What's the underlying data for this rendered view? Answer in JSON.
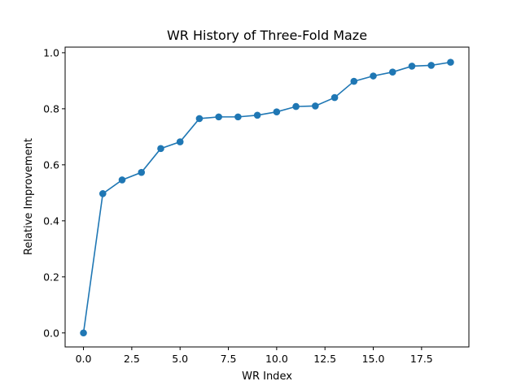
{
  "chart_data": {
    "type": "line",
    "title": "WR History of Three-Fold Maze",
    "xlabel": "WR Index",
    "ylabel": "Relative Improvement",
    "xlim": [
      -0.95,
      19.95
    ],
    "ylim": [
      -0.05,
      1.02
    ],
    "xticks": [
      0.0,
      2.5,
      5.0,
      7.5,
      10.0,
      12.5,
      15.0,
      17.5
    ],
    "xtick_labels": [
      "0.0",
      "2.5",
      "5.0",
      "7.5",
      "10.0",
      "12.5",
      "15.0",
      "17.5"
    ],
    "yticks": [
      0.0,
      0.2,
      0.4,
      0.6,
      0.8,
      1.0
    ],
    "ytick_labels": [
      "0.0",
      "0.2",
      "0.4",
      "0.6",
      "0.8",
      "1.0"
    ],
    "grid": false,
    "color": "#1f77b4",
    "marker": "circle",
    "x": [
      0,
      1,
      2,
      3,
      4,
      5,
      6,
      7,
      8,
      9,
      10,
      11,
      12,
      13,
      14,
      15,
      16,
      17,
      18,
      19
    ],
    "y": [
      0.0,
      0.497,
      0.546,
      0.573,
      0.658,
      0.682,
      0.765,
      0.771,
      0.771,
      0.777,
      0.789,
      0.808,
      0.81,
      0.84,
      0.898,
      0.917,
      0.931,
      0.952,
      0.955,
      0.966
    ]
  }
}
